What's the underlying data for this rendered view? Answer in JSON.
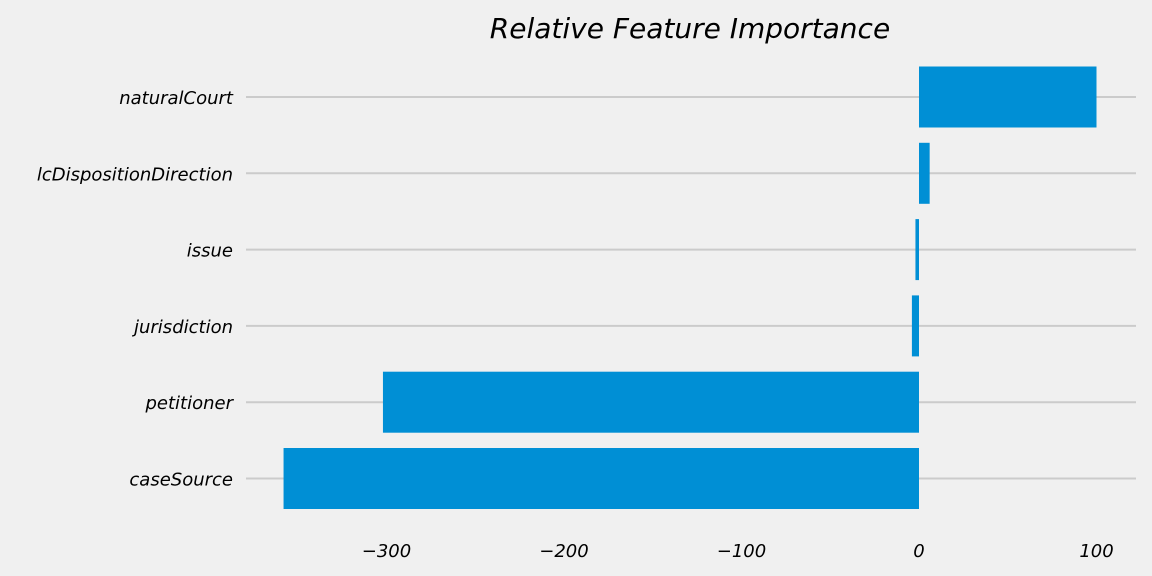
{
  "chart_data": {
    "type": "bar",
    "orientation": "horizontal",
    "title": "Relative Feature Importance",
    "xlabel": "",
    "ylabel": "",
    "categories": [
      "caseSource",
      "petitioner",
      "jurisdiction",
      "issue",
      "lcDispositionDirection",
      "naturalCourt"
    ],
    "values": [
      -358,
      -302,
      -4,
      -2,
      6,
      100
    ],
    "xlim": [
      -380,
      124
    ],
    "xticks": [
      -300,
      -200,
      -100,
      0,
      100
    ],
    "xtick_labels": [
      "−300",
      "−200",
      "−100",
      "0",
      "100"
    ],
    "grid": "y-axis only",
    "legend": "none",
    "bar_color": "#008fd5",
    "grid_color": "#cbcbcb",
    "background_color": "#f0f0f0"
  }
}
